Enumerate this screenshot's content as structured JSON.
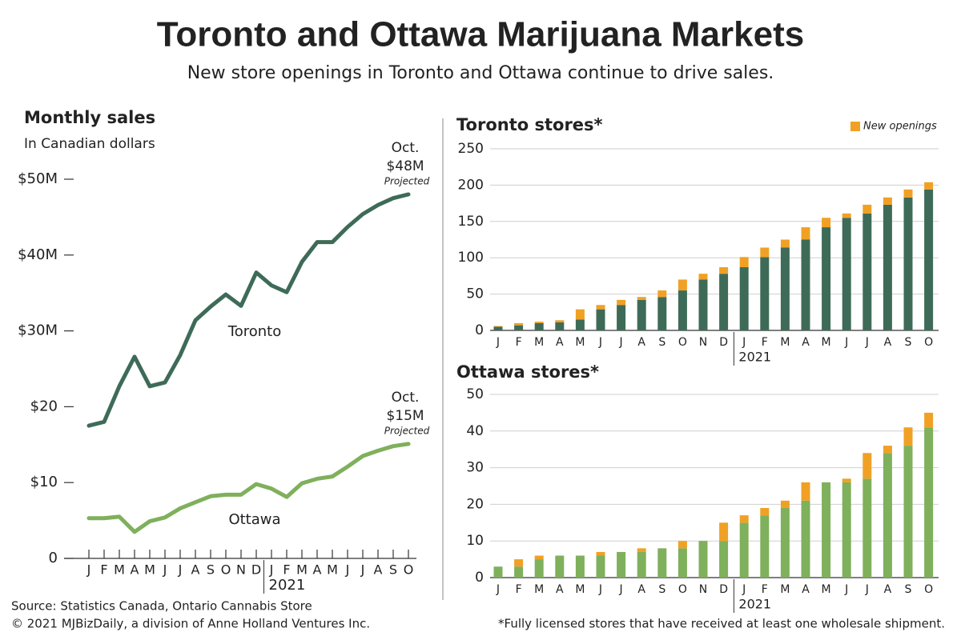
{
  "header": {
    "title": "Toronto and Ottawa Marijuana Markets",
    "subtitle": "New store openings in Toronto and Ottawa continue to drive sales."
  },
  "chart_data": [
    {
      "type": "line",
      "title": "Monthly sales",
      "subtitle": "In Canadian dollars",
      "categories": [
        "J",
        "F",
        "M",
        "A",
        "M",
        "J",
        "J",
        "A",
        "S",
        "O",
        "N",
        "D",
        "J",
        "F",
        "M",
        "A",
        "M",
        "J",
        "J",
        "A",
        "S",
        "O"
      ],
      "year_label": "2021",
      "ylim": [
        0,
        50
      ],
      "yticks": [
        {
          "value": 50,
          "label": "$50M"
        },
        {
          "value": 40,
          "label": "$40M"
        },
        {
          "value": 30,
          "label": "$30M"
        },
        {
          "value": 20,
          "label": "$20"
        },
        {
          "value": 10,
          "label": "$10"
        },
        0
      ],
      "grid": false,
      "series": [
        {
          "name": "Toronto",
          "color": "#3e6b58",
          "end_label": [
            "Oct.",
            "$48M",
            "Projected"
          ],
          "values": [
            17.5,
            18.0,
            22.7,
            26.6,
            22.7,
            23.2,
            26.8,
            31.4,
            33.2,
            34.8,
            33.3,
            37.7,
            36.0,
            35.1,
            39.1,
            41.7,
            41.7,
            43.7,
            45.4,
            46.6,
            47.5,
            48.0
          ]
        },
        {
          "name": "Ottawa",
          "color": "#7fb05c",
          "end_label": [
            "Oct.",
            "$15M",
            "Projected"
          ],
          "values": [
            5.3,
            5.3,
            5.5,
            3.5,
            4.9,
            5.4,
            6.6,
            7.4,
            8.2,
            8.4,
            8.4,
            9.8,
            9.2,
            8.1,
            9.9,
            10.5,
            10.8,
            12.1,
            13.5,
            14.2,
            14.8,
            15.1
          ]
        }
      ]
    },
    {
      "type": "bar",
      "stacked": true,
      "title": "Toronto stores*",
      "categories": [
        "J",
        "F",
        "M",
        "A",
        "M",
        "J",
        "J",
        "A",
        "S",
        "O",
        "N",
        "D",
        "J",
        "F",
        "M",
        "A",
        "M",
        "J",
        "J",
        "A",
        "S",
        "O"
      ],
      "year_label": "2021",
      "ylim": [
        0,
        250
      ],
      "yticks": [
        0,
        50,
        100,
        150,
        200,
        250
      ],
      "grid": true,
      "legend": "top-right",
      "series": [
        {
          "color": "#3e6b58",
          "values": [
            5,
            7,
            10,
            11,
            15,
            29,
            35,
            42,
            46,
            55,
            70,
            78,
            87,
            101,
            114,
            125,
            142,
            155,
            161,
            173,
            183,
            194
          ]
        },
        {
          "name": "New openings",
          "color": "#f0a125",
          "values": [
            1,
            3,
            2,
            3,
            14,
            6,
            7,
            4,
            9,
            15,
            8,
            9,
            14,
            13,
            11,
            17,
            13,
            6,
            12,
            10,
            11,
            10
          ]
        }
      ]
    },
    {
      "type": "bar",
      "stacked": true,
      "title": "Ottawa stores*",
      "categories": [
        "J",
        "F",
        "M",
        "A",
        "M",
        "J",
        "J",
        "A",
        "S",
        "O",
        "N",
        "D",
        "J",
        "F",
        "M",
        "A",
        "M",
        "J",
        "J",
        "A",
        "S",
        "O"
      ],
      "year_label": "2021",
      "ylim": [
        0,
        50
      ],
      "yticks": [
        0,
        10,
        20,
        30,
        40,
        50
      ],
      "grid": true,
      "series": [
        {
          "color": "#7fb05c",
          "values": [
            3,
            3,
            5,
            6,
            6,
            6,
            7,
            7,
            8,
            8,
            10,
            10,
            15,
            17,
            19,
            21,
            26,
            26,
            27,
            34,
            36,
            41
          ]
        },
        {
          "color": "#f0a125",
          "values": [
            0,
            2,
            1,
            0,
            0,
            1,
            0,
            1,
            0,
            2,
            0,
            5,
            2,
            2,
            2,
            5,
            0,
            1,
            7,
            2,
            5,
            4
          ]
        }
      ]
    }
  ],
  "footer": {
    "source": "Source: Statistics Canada, Ontario Cannabis Store",
    "copyright": "© 2021 MJBizDaily, a division of Anne Holland Ventures Inc.",
    "footnote": "*Fully licensed stores that have received at least one wholesale shipment."
  }
}
